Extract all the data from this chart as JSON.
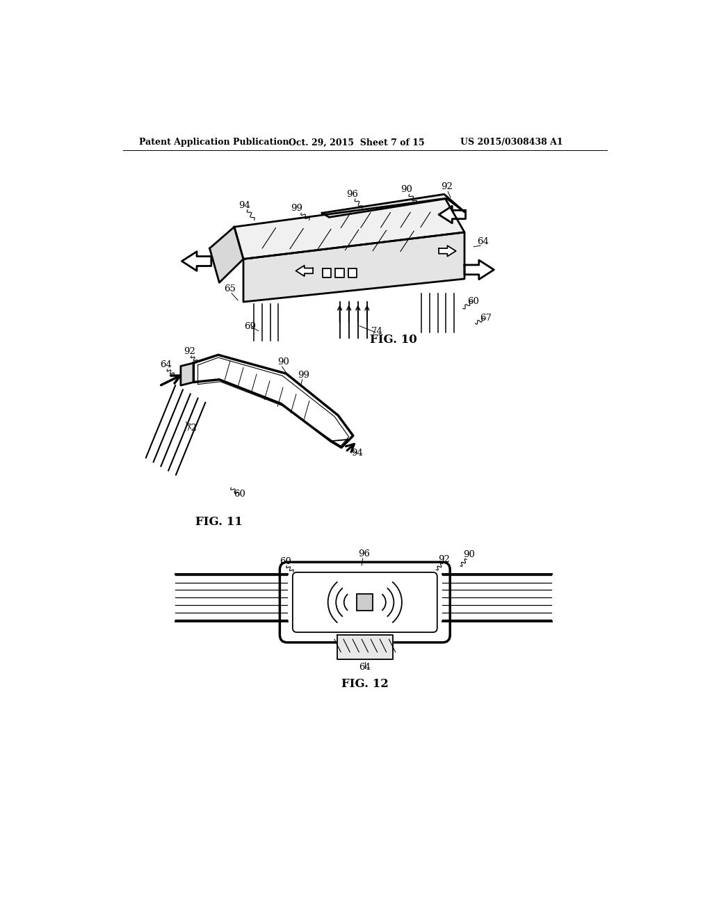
{
  "bg_color": "#ffffff",
  "header_left": "Patent Application Publication",
  "header_mid": "Oct. 29, 2015  Sheet 7 of 15",
  "header_right": "US 2015/0308438 A1",
  "fig10_label": "FIG. 10",
  "fig11_label": "FIG. 11",
  "fig12_label": "FIG. 12",
  "line_color": "#000000",
  "lw_thin": 0.8,
  "lw_thick": 2.0,
  "lw_med": 1.3
}
